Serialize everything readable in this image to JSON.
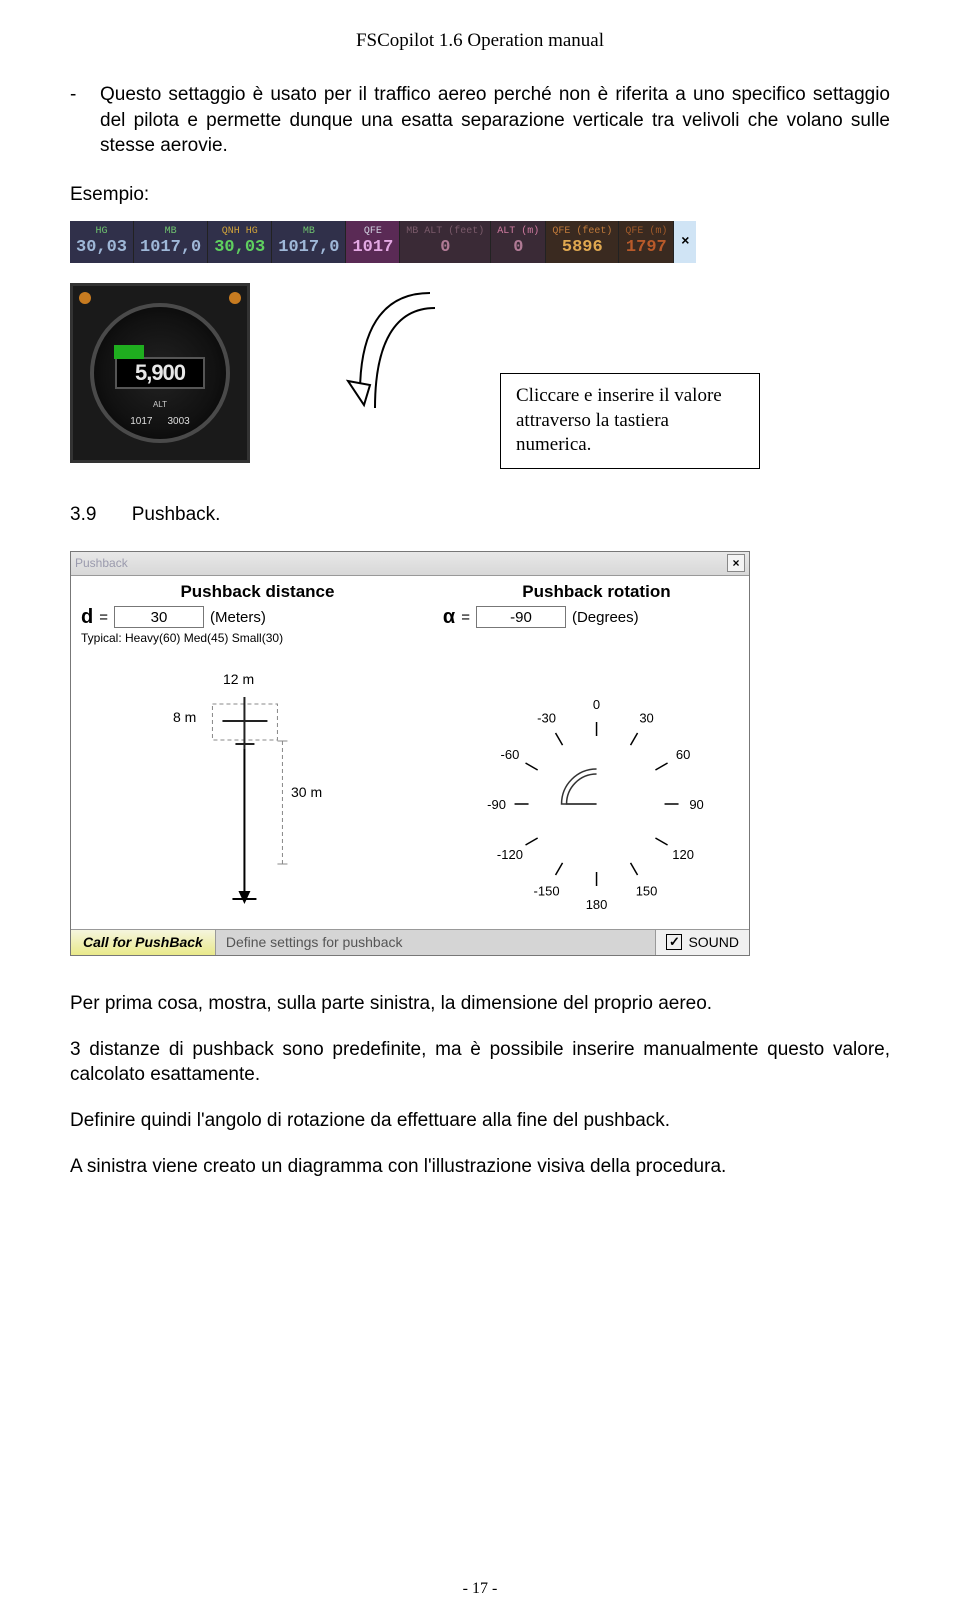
{
  "header": {
    "title": "FSCopilot 1.6 Operation manual"
  },
  "bullet": {
    "dash": "-",
    "text": "Questo settaggio è usato per il traffico aereo perché non è riferita a uno specifico settaggio del pilota e permette dunque una esatta separazione verticale tra velivoli che volano sulle stesse aerovie."
  },
  "esempio": {
    "label": "Esempio:"
  },
  "databar": {
    "bg_default": "#30304a",
    "segments": [
      {
        "top": "HG",
        "top_c": "#6fc36f",
        "bot": "30,03",
        "bot_c": "#9fb8d8",
        "bg": "#30304a"
      },
      {
        "top": "MB",
        "top_c": "#6fc36f",
        "bot": "1017,0",
        "bot_c": "#9fb8d8",
        "bg": "#30304a"
      },
      {
        "top": "QNH HG",
        "top_c": "#cfa23a",
        "bot": "30,03",
        "bot_c": "#5fd05f",
        "bg": "#30304a"
      },
      {
        "top": "MB",
        "top_c": "#6fc36f",
        "bot": "1017,0",
        "bot_c": "#9fb8d8",
        "bg": "#30304a"
      },
      {
        "top": "QFE",
        "top_c": "#d0d0e0",
        "bot": "1017",
        "bot_c": "#e3a8e3",
        "bg": "#5a2a55"
      },
      {
        "top": "MB ALT (feet)",
        "top_c": "#7a5a6a",
        "bot": "0",
        "bot_c": "#b07a95",
        "bg": "#3a2a36"
      },
      {
        "top": "ALT (m)",
        "top_c": "#d07aa0",
        "bot": "0",
        "bot_c": "#b07a95",
        "bg": "#3a2a36"
      },
      {
        "top": "QFE (feet)",
        "top_c": "#c07a3a",
        "bot": "5896",
        "bot_c": "#dfa850",
        "bg": "#3a2a20"
      },
      {
        "top": "QFE (m)",
        "top_c": "#a05a2a",
        "bot": "1797",
        "bot_c": "#b85a2a",
        "bg": "#3a2a20"
      }
    ],
    "close": "×"
  },
  "gauge": {
    "readout": "5,900",
    "alt": "ALT",
    "n1": "1017",
    "n2": "3003"
  },
  "callout": {
    "text": "Cliccare e inserire il valore attraverso la tastiera numerica."
  },
  "section": {
    "num": "3.9",
    "title": "Pushback."
  },
  "pushback": {
    "bartitle": "Pushback",
    "h_distance": "Pushback distance",
    "h_rotation": "Pushback rotation",
    "d_sym": "d",
    "eq": "=",
    "d_val": "30",
    "d_unit": "(Meters)",
    "typ": "Typical:  Heavy(60) Med(45) Small(30)",
    "a_sym": "α",
    "a_val": "-90",
    "a_unit": "(Degrees)",
    "diag_left": {
      "top": "12 m",
      "left": "8 m",
      "right": "30 m"
    },
    "diag_right": {
      "ticks": [
        "0",
        "30",
        "60",
        "90",
        "120",
        "150",
        "180",
        "-150",
        "-120",
        "-90",
        "-60",
        "-30"
      ]
    },
    "call": "Call for PushBack",
    "desc": "Define settings for pushback",
    "sound": "SOUND",
    "check": "☑"
  },
  "paras": {
    "p1": "Per prima cosa, mostra, sulla parte sinistra, la dimensione del proprio aereo.",
    "p2": "3 distanze di pushback sono predefinite, ma è possibile inserire manualmente questo valore, calcolato esattamente.",
    "p3": "Definire quindi l'angolo di rotazione da effettuare alla fine del pushback.",
    "p4": "A sinistra viene creato un diagramma con l'illustrazione visiva della procedura."
  },
  "pagenum": "- 17 -"
}
